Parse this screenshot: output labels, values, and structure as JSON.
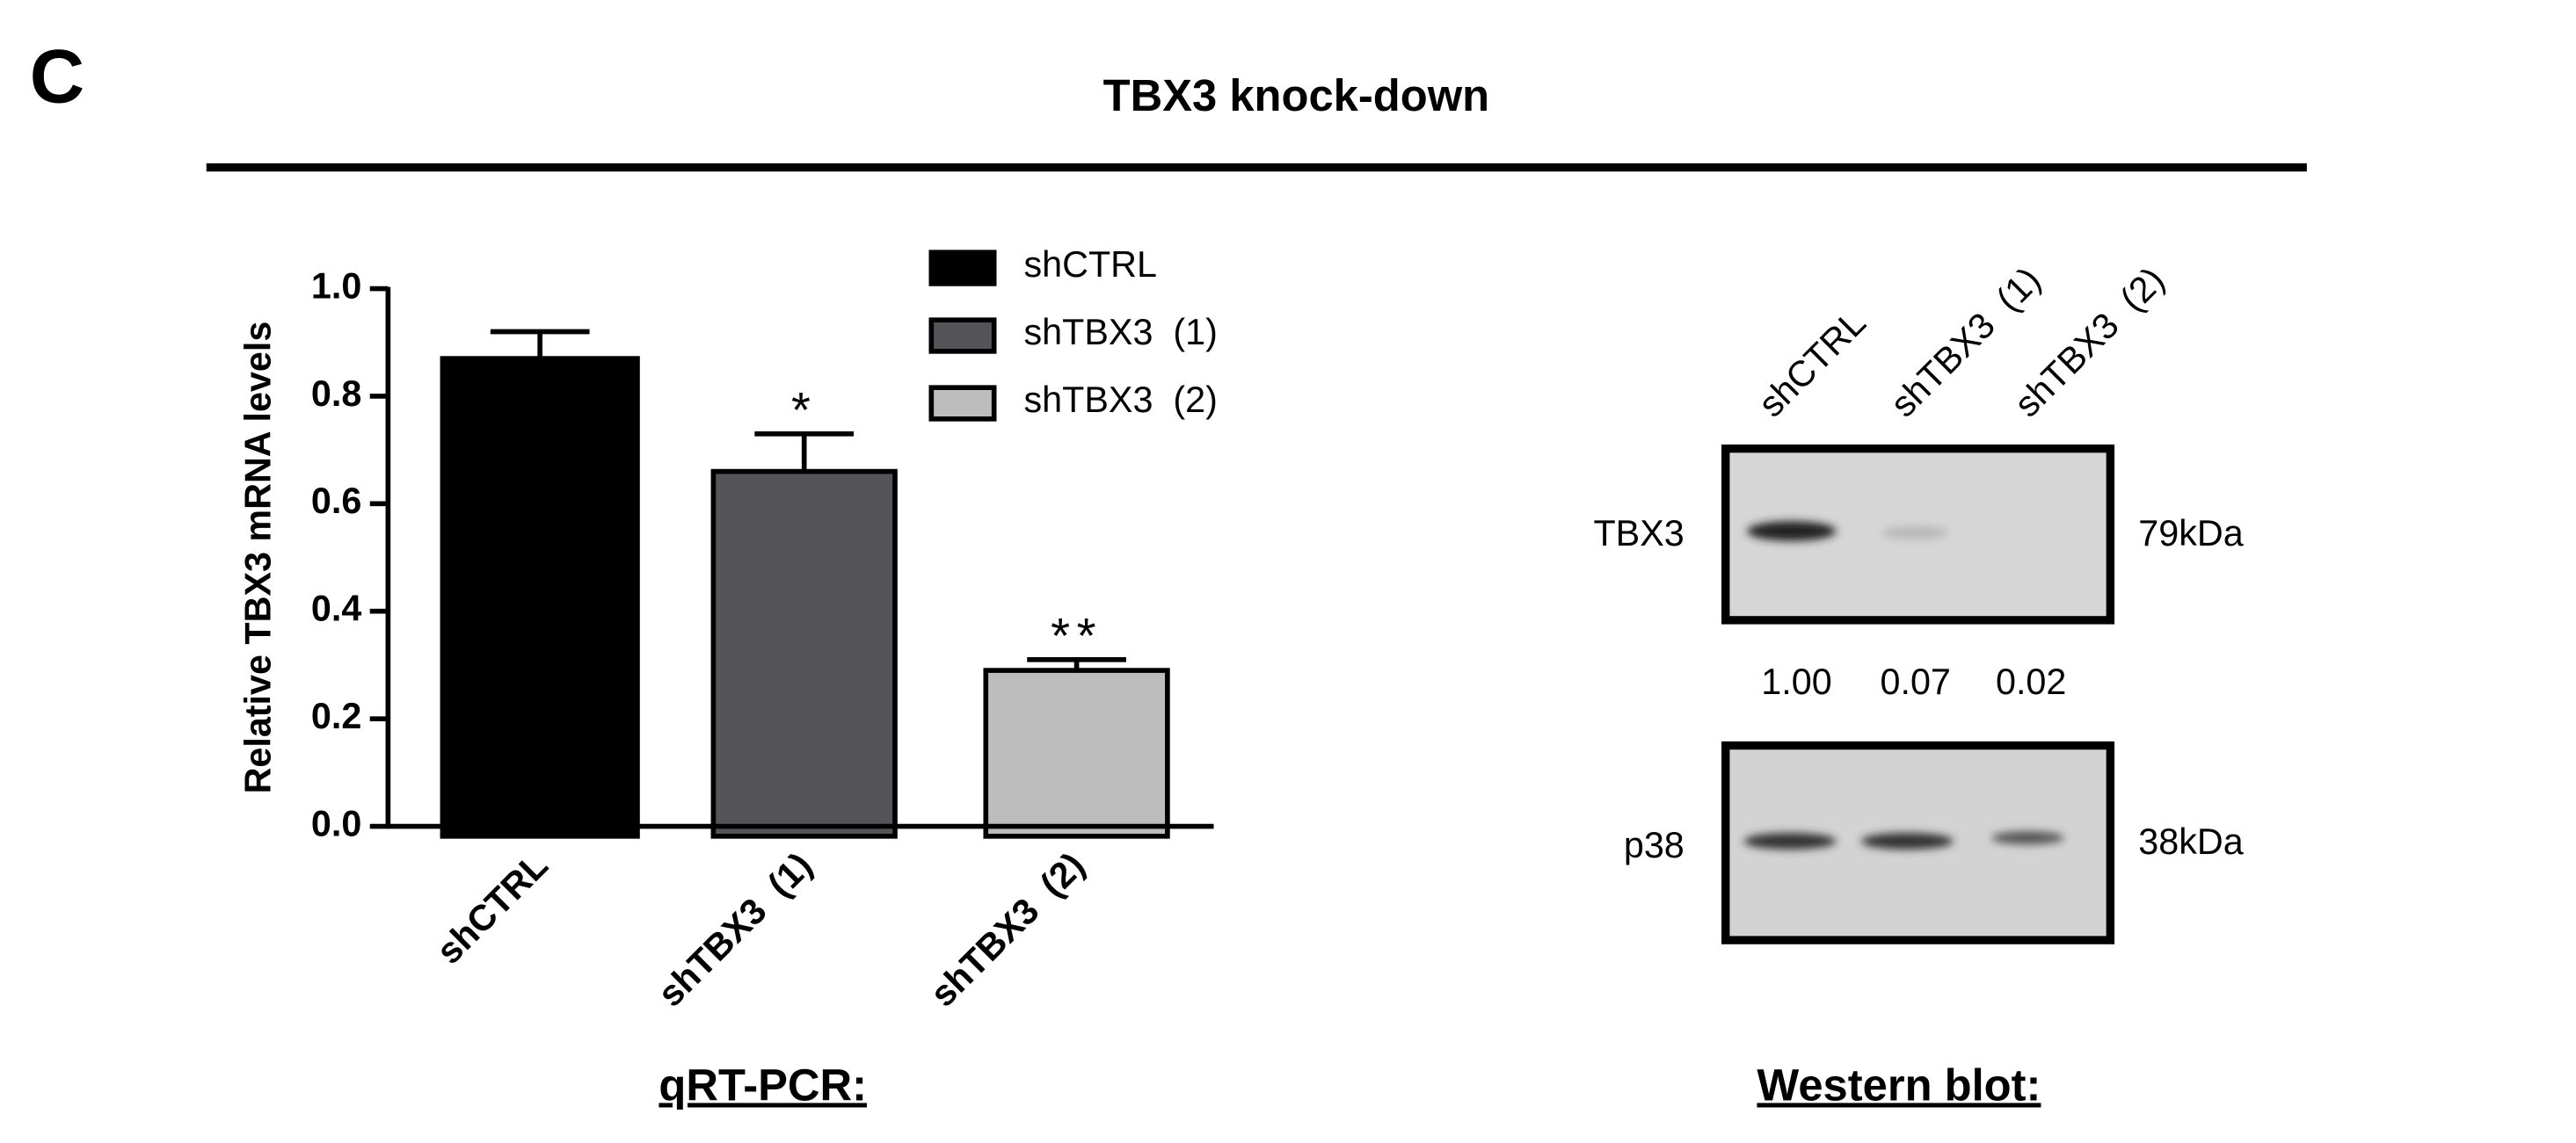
{
  "panel_label": "C",
  "title": "TBX3 knock-down",
  "chart_data": {
    "type": "bar",
    "y_label": "Relative TBX3 mRNA levels",
    "categories": [
      "shCTRL",
      "shTBX3  (1)",
      "shTBX3  (2)"
    ],
    "values": [
      0.87,
      0.66,
      0.29
    ],
    "errors": [
      0.05,
      0.07,
      0.02
    ],
    "significance": [
      null,
      "*",
      "**"
    ],
    "colors": [
      "#000000",
      "#555559",
      "#bdbdbd"
    ],
    "ylim": [
      0,
      1
    ],
    "yticks": [
      {
        "value": 0,
        "label": "0.0"
      },
      0.2,
      0.4,
      0.6,
      0.8,
      {
        "value": 1,
        "label": "1.0"
      }
    ],
    "legend": true,
    "caption": "qRT-PCR:"
  },
  "western_blot": {
    "lanes": [
      "shCTRL",
      "shTBX3  (1)",
      "shTBX3  (2)"
    ],
    "rows": [
      {
        "label": "TBX3",
        "size": "79kDa"
      },
      {
        "label": "p38",
        "size": "38kDa"
      }
    ],
    "quantification": [
      "1.00",
      "0.07",
      "0.02"
    ],
    "caption": "Western blot:"
  }
}
